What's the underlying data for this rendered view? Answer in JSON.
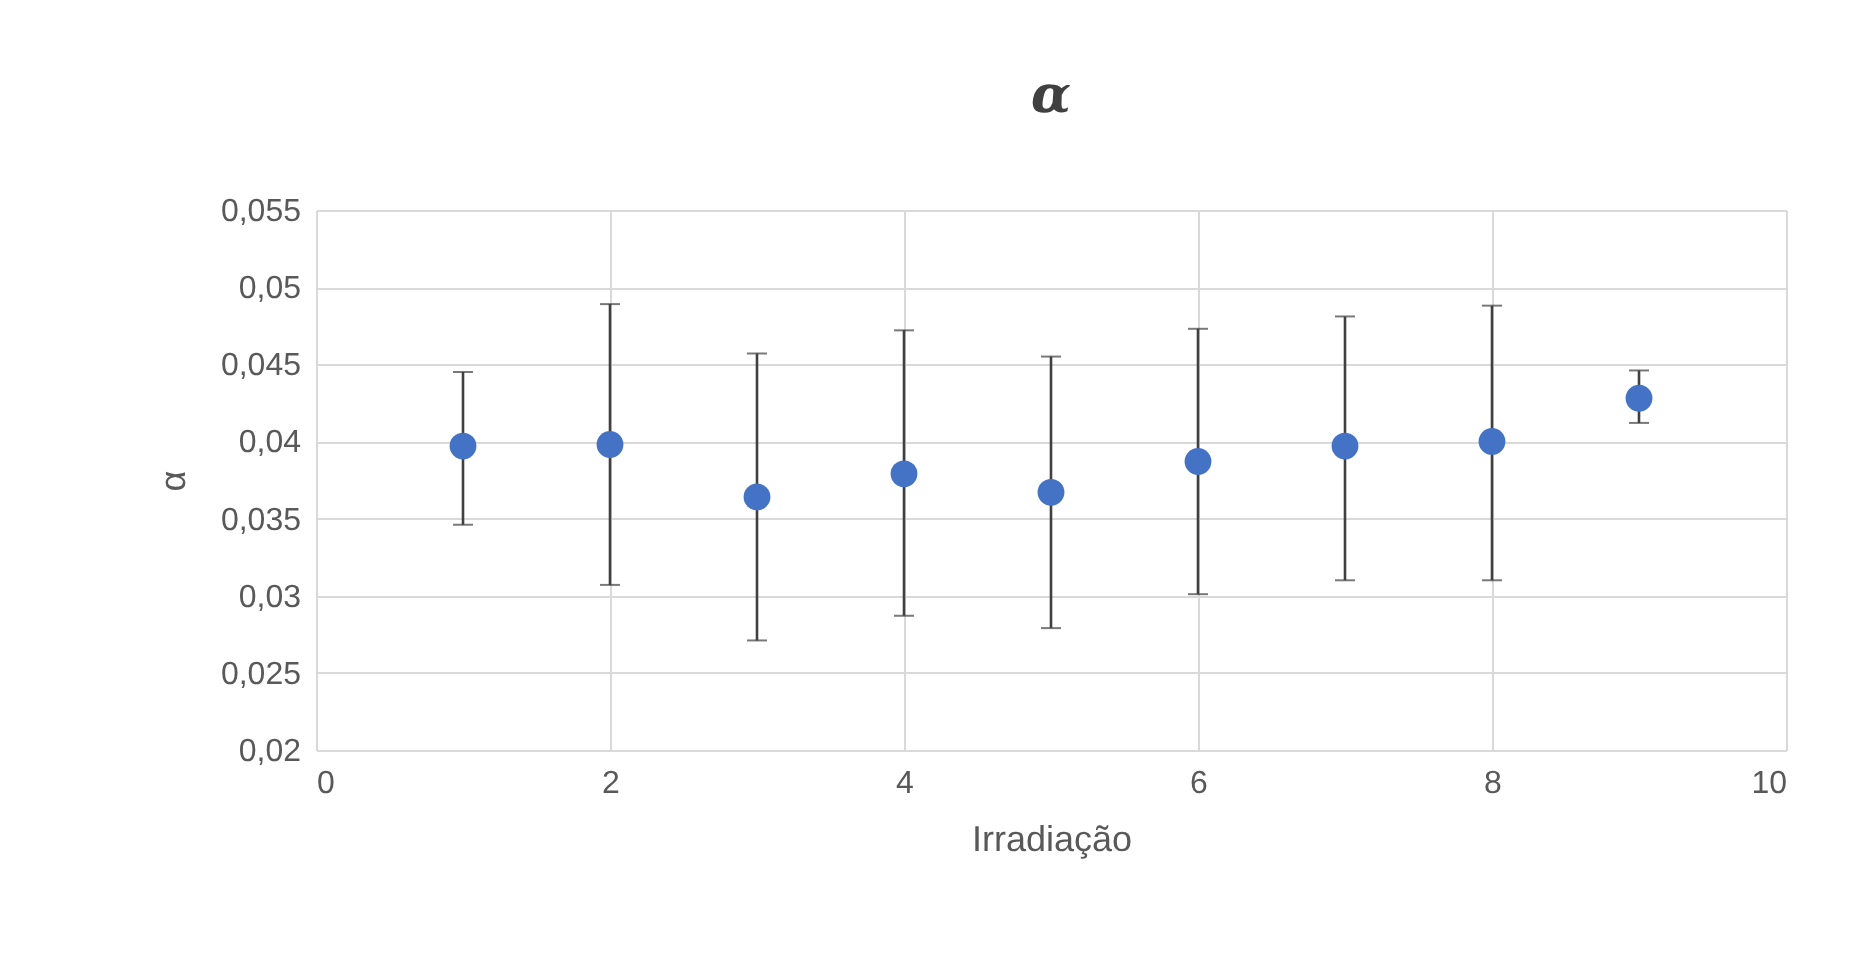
{
  "chart_data": {
    "type": "scatter",
    "title": "α",
    "xlabel": "Irradiação",
    "ylabel": "α",
    "x": [
      1,
      2,
      3,
      4,
      5,
      6,
      7,
      8,
      9
    ],
    "series": [
      {
        "color": "#4472c4",
        "values": [
          0.0397,
          0.0398,
          0.0364,
          0.0379,
          0.0367,
          0.0387,
          0.0397,
          0.04,
          0.0428
        ],
        "errors": [
          [
            0.0346,
            0.0445
          ],
          [
            0.0307,
            0.0489
          ],
          [
            0.0271,
            0.0457
          ],
          [
            0.0287,
            0.0472
          ],
          [
            0.0279,
            0.0455
          ],
          [
            0.0301,
            0.0473
          ],
          [
            0.031,
            0.0481
          ],
          [
            0.031,
            0.0488
          ],
          [
            0.0412,
            0.0446
          ]
        ]
      }
    ],
    "xlim": [
      0,
      10
    ],
    "xticks": [
      0,
      2,
      4,
      6,
      8,
      10
    ],
    "ylim": [
      0.02,
      0.055
    ],
    "yticks": [
      {
        "value": 0.02,
        "label": "0,02"
      },
      {
        "value": 0.025,
        "label": "0,025"
      },
      {
        "value": 0.03,
        "label": "0,03"
      },
      {
        "value": 0.035,
        "label": "0,035"
      },
      {
        "value": 0.04,
        "label": "0,04"
      },
      {
        "value": 0.045,
        "label": "0,045"
      },
      {
        "value": 0.05,
        "label": "0,05"
      },
      {
        "value": 0.055,
        "label": "0,055"
      }
    ],
    "grid": true,
    "marker": "circle"
  }
}
